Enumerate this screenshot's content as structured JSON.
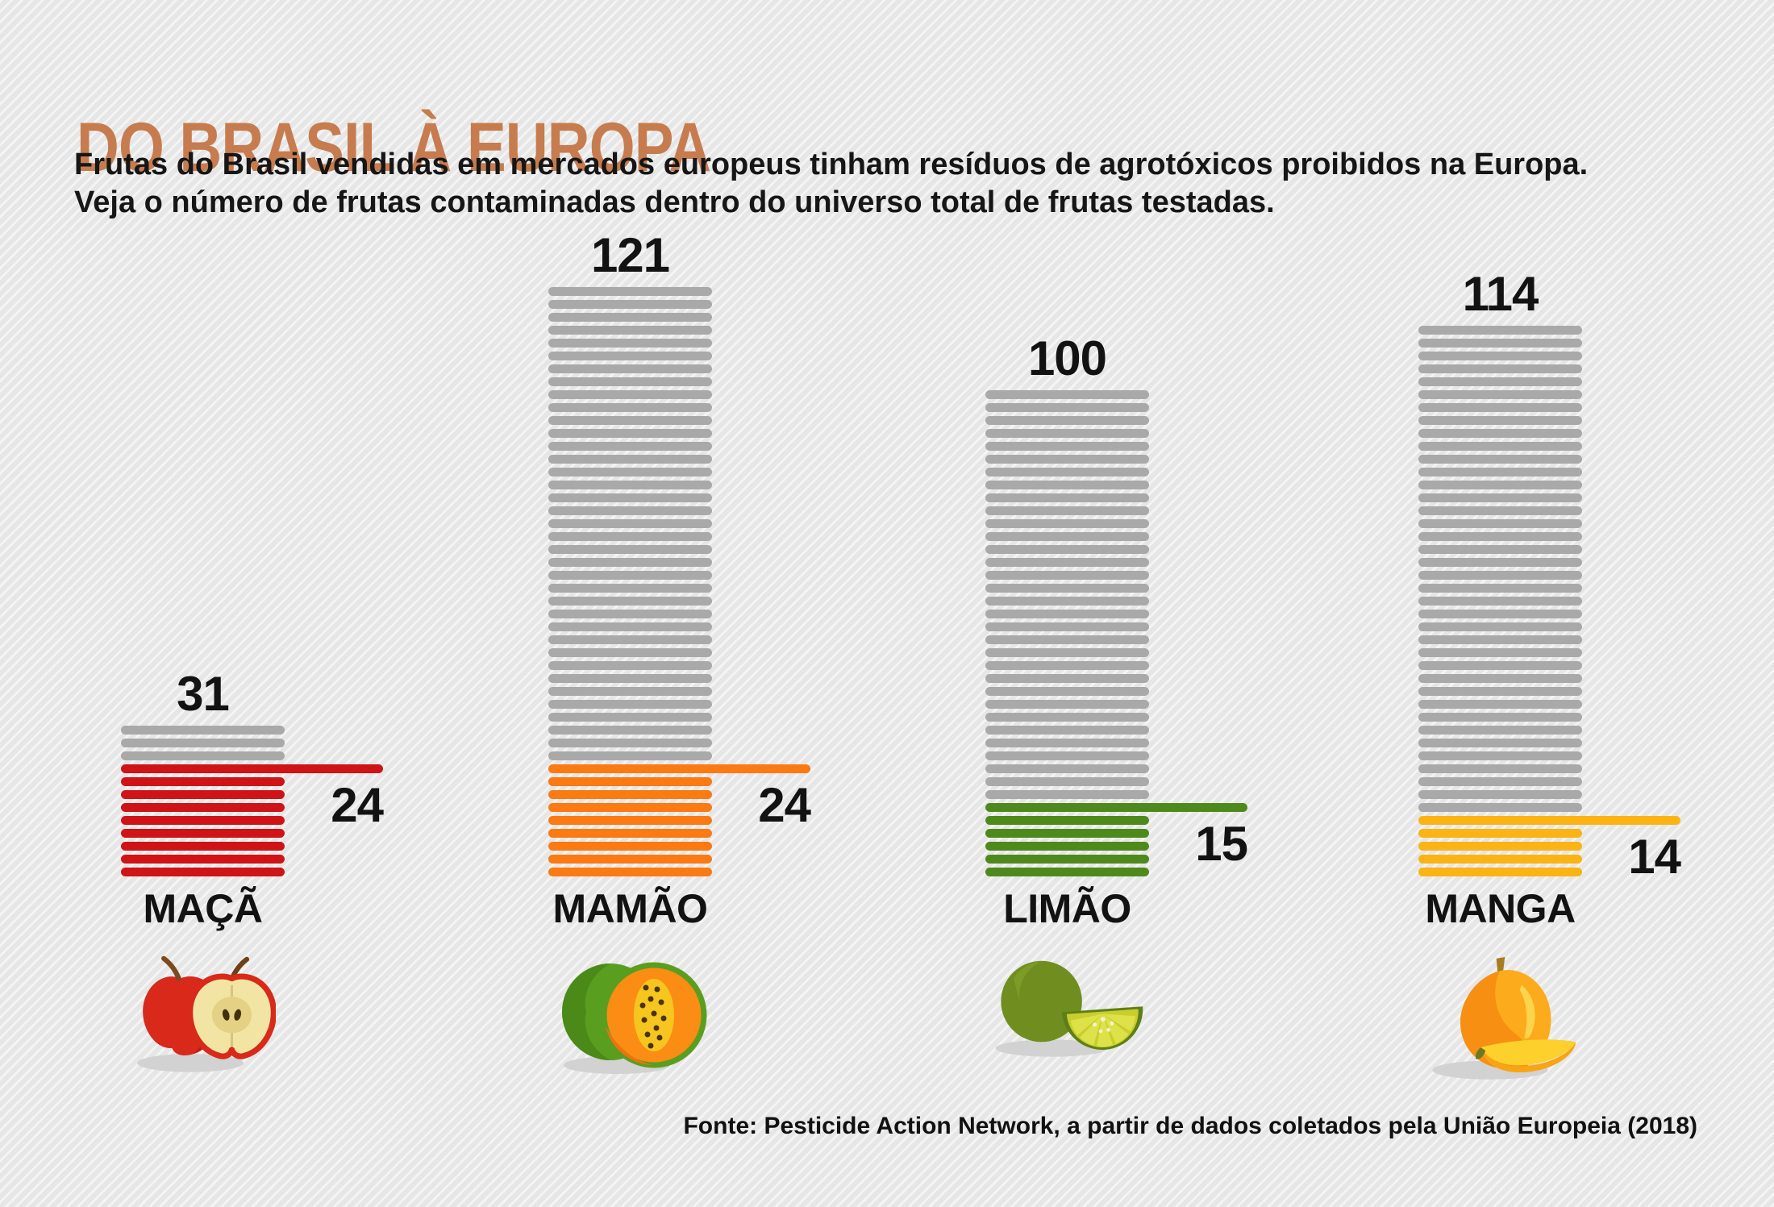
{
  "header": {
    "title": "DO BRASIL À EUROPA",
    "title_color": "#c67c4e",
    "subtitle_line1": "Frutas do Brasil vendidas em mercados europeus tinham resíduos de agrotóxicos proibidos na Europa.",
    "subtitle_line2": "Veja o número de frutas contaminadas dentro do universo total de frutas testadas."
  },
  "footer": {
    "source": "Fonte: Pesticide Action Network, a partir de dados coletados pela União Europeia (2018)"
  },
  "chart_data": {
    "type": "bar",
    "title": "DO BRASIL À EUROPA",
    "categories": [
      "MAÇÃ",
      "MAMÃO",
      "LIMÃO",
      "MANGA"
    ],
    "series": [
      {
        "name": "frutas testadas (total)",
        "values": [
          31,
          121,
          100,
          114
        ]
      },
      {
        "name": "frutas contaminadas",
        "values": [
          24,
          24,
          15,
          14
        ]
      }
    ],
    "ylim": [
      0,
      121
    ],
    "grid": false,
    "legend": "none",
    "background_color": "#e6e6e6",
    "tested_color": "#a9a9a9",
    "fruits": [
      {
        "label": "MAÇÃ",
        "total": 31,
        "contaminated": 24,
        "color": "#d01317",
        "icon": "apple-icon"
      },
      {
        "label": "MAMÃO",
        "total": 121,
        "contaminated": 24,
        "color": "#fb7a12",
        "icon": "papaya-icon"
      },
      {
        "label": "LIMÃO",
        "total": 100,
        "contaminated": 15,
        "color": "#4e8a1b",
        "icon": "lime-icon"
      },
      {
        "label": "MANGA",
        "total": 114,
        "contaminated": 14,
        "color": "#fbb413",
        "icon": "mango-icon"
      }
    ]
  }
}
